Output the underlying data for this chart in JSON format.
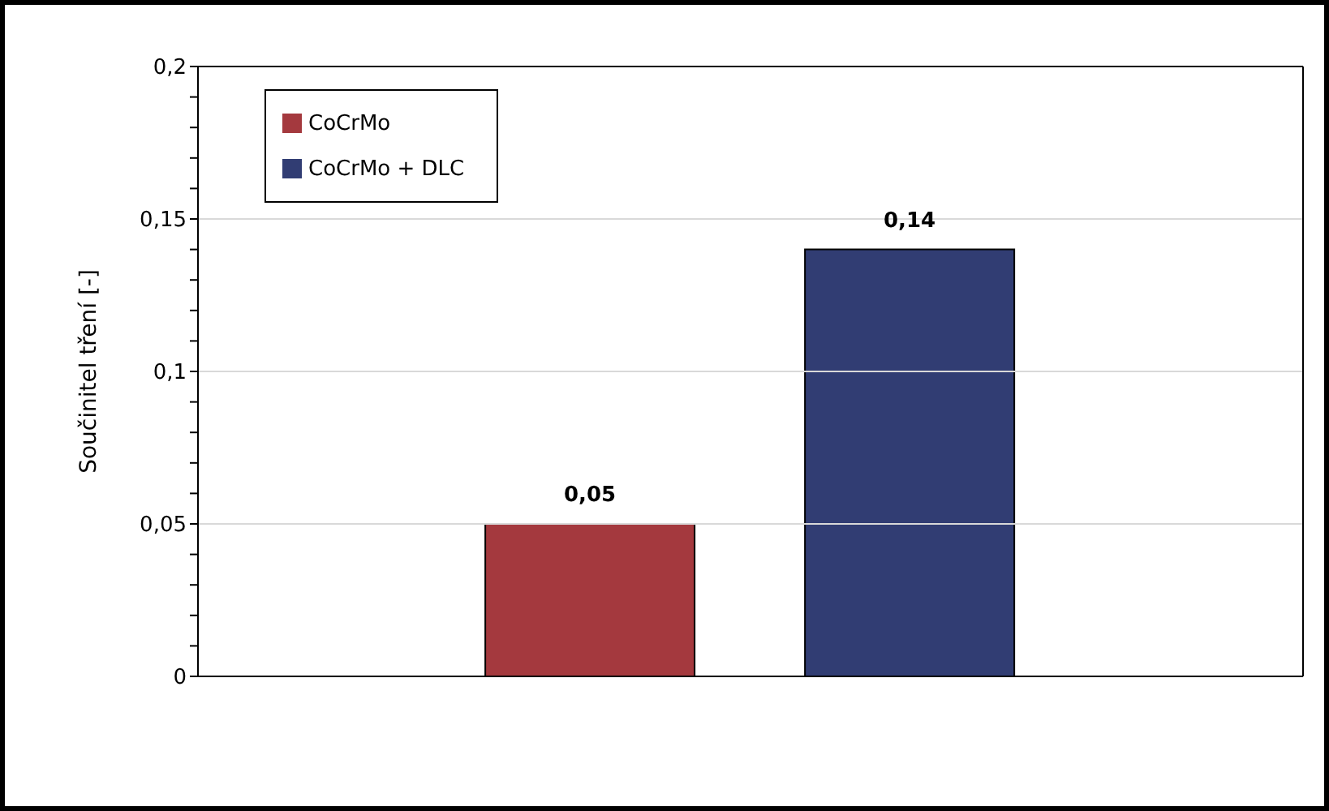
{
  "chart_data": {
    "type": "bar",
    "ylabel": "Součinitel tření [-]",
    "categories": [
      null
    ],
    "series": [
      {
        "name": "CoCrMo",
        "color": "#a4393e",
        "values": [
          0.05
        ],
        "value_labels": [
          "0,05"
        ]
      },
      {
        "name": "CoCrMo + DLC",
        "color": "#313d73",
        "values": [
          0.14
        ],
        "value_labels": [
          "0,14"
        ]
      }
    ],
    "ylim": [
      0,
      0.2
    ],
    "yticks": [
      {
        "value": 0,
        "label": "0"
      },
      {
        "value": 0.01,
        "label": null
      },
      {
        "value": 0.02,
        "label": null
      },
      {
        "value": 0.03,
        "label": null
      },
      {
        "value": 0.04,
        "label": null
      },
      {
        "value": 0.05,
        "label": "0,05"
      },
      {
        "value": 0.06,
        "label": null
      },
      {
        "value": 0.07,
        "label": null
      },
      {
        "value": 0.08,
        "label": null
      },
      {
        "value": 0.09,
        "label": null
      },
      {
        "value": 0.1,
        "label": "0,1"
      },
      {
        "value": 0.11,
        "label": null
      },
      {
        "value": 0.12,
        "label": null
      },
      {
        "value": 0.13,
        "label": null
      },
      {
        "value": 0.14,
        "label": null
      },
      {
        "value": 0.15,
        "label": "0,15"
      },
      {
        "value": 0.16,
        "label": null
      },
      {
        "value": 0.17,
        "label": null
      },
      {
        "value": 0.18,
        "label": null
      },
      {
        "value": 0.19,
        "label": null
      },
      {
        "value": 0.2,
        "label": "0,2"
      }
    ],
    "grid": "y",
    "legend": "top left"
  }
}
